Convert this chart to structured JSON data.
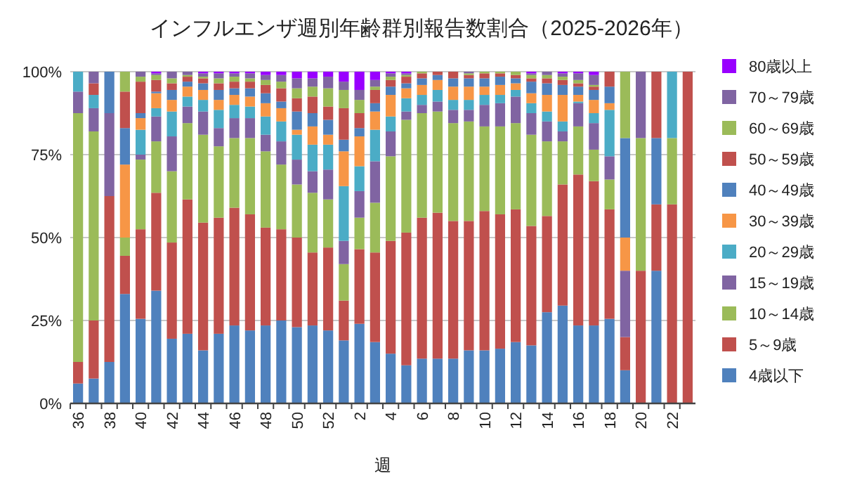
{
  "chart_data": {
    "type": "bar",
    "stacked": true,
    "title": "インフルエンザ週別年齢群別報告数割合（2025-2026年）",
    "xlabel": "週",
    "categories": [
      "36",
      null,
      "38",
      null,
      "40",
      null,
      "42",
      null,
      "44",
      null,
      "46",
      null,
      "48",
      null,
      "50",
      null,
      "52",
      null,
      "2",
      null,
      "4",
      null,
      "6",
      null,
      "8",
      null,
      "10",
      null,
      "12",
      null,
      "14",
      null,
      "16",
      null,
      "18",
      null,
      "20",
      null,
      "22",
      null
    ],
    "series": [
      {
        "name": "4歳以下",
        "color": "#4f81bd",
        "values": [
          6,
          7.5,
          12.5,
          33,
          25.5,
          34,
          19.5,
          21,
          16,
          21,
          23.5,
          22,
          23.5,
          25,
          23,
          23.5,
          22,
          19,
          24,
          18.5,
          15,
          11.5,
          13.5,
          13.5,
          13.5,
          16,
          16,
          16.5,
          18.5,
          17.5,
          27.5,
          29.5,
          23.5,
          23.5,
          25.5,
          10,
          0,
          40,
          0,
          0
        ]
      },
      {
        "name": "5～9歳",
        "color": "#c0504d",
        "values": [
          6.5,
          17.5,
          50,
          11.5,
          27,
          29.5,
          29,
          40.5,
          38.5,
          35,
          35.5,
          35,
          29.5,
          27.5,
          27,
          22,
          25,
          12,
          22.5,
          27,
          34,
          40,
          42.5,
          44,
          41.5,
          39,
          42,
          40.5,
          40,
          36,
          29,
          36.5,
          45.5,
          43.5,
          33,
          10,
          40,
          20,
          60,
          100
        ]
      },
      {
        "name": "10～14歳",
        "color": "#9bbb59",
        "values": [
          75,
          57,
          0,
          5.5,
          21,
          15.5,
          21.5,
          23,
          26.5,
          21.5,
          21,
          23,
          23,
          19.5,
          16,
          18,
          14.5,
          11,
          9.5,
          15,
          25.5,
          34,
          31.5,
          30.5,
          29.5,
          30,
          25.5,
          26.5,
          26,
          27.5,
          22.5,
          13,
          14.5,
          9.5,
          9,
          0,
          40,
          0,
          20,
          0
        ]
      },
      {
        "name": "15～19歳",
        "color": "#8064a2",
        "values": [
          6.5,
          7,
          25,
          0,
          1.5,
          7.5,
          10.5,
          5,
          7,
          5.5,
          6,
          6,
          5,
          7,
          7.5,
          6.5,
          9,
          7,
          8,
          12.5,
          7.5,
          2.5,
          2.5,
          3,
          4,
          3.5,
          6.5,
          7,
          8,
          6.5,
          6,
          3,
          7,
          8,
          7,
          20,
          20,
          0,
          0,
          0
        ]
      },
      {
        "name": "20～29歳",
        "color": "#4bacc6",
        "values": [
          6,
          4,
          0,
          0,
          7.5,
          2.5,
          7.5,
          3,
          3.5,
          5.5,
          4,
          3.5,
          5.5,
          6,
          7.5,
          8,
          7.5,
          16.5,
          7.5,
          9.5,
          4.5,
          4,
          3,
          3.5,
          3,
          3,
          3,
          2.5,
          2,
          3,
          3,
          3,
          0.5,
          3,
          14,
          0,
          0,
          0,
          20,
          0
        ]
      },
      {
        "name": "30～39歳",
        "color": "#f79646",
        "values": [
          0,
          0,
          0,
          22,
          3.5,
          4.5,
          3.5,
          3,
          3,
          3,
          3,
          3,
          4,
          4,
          1.5,
          5.5,
          3,
          10.5,
          9,
          5.5,
          6.5,
          3,
          3,
          3,
          4,
          4,
          2.5,
          3,
          2,
          3,
          5,
          8,
          2,
          4,
          2,
          10,
          0,
          0,
          0,
          0
        ]
      },
      {
        "name": "40～49歳",
        "color": "#4f81bd",
        "values": [
          0,
          0,
          12.5,
          11,
          1.5,
          0.5,
          3,
          1.5,
          2,
          3,
          2,
          2.5,
          3,
          2,
          5.5,
          4,
          4.5,
          3.5,
          2.5,
          2.5,
          2.5,
          1.5,
          2,
          1.5,
          2.5,
          2.5,
          2.5,
          2.5,
          1.5,
          3.5,
          3.5,
          3,
          2.5,
          3,
          5,
          30,
          0,
          20,
          0,
          0
        ]
      },
      {
        "name": "50～59歳",
        "color": "#c0504d",
        "values": [
          0,
          3.5,
          0,
          11,
          9.5,
          3.5,
          2,
          1.5,
          1.5,
          2,
          2,
          2,
          2.5,
          4,
          4,
          5,
          4,
          9.5,
          4.5,
          4,
          2,
          2,
          1.5,
          1,
          2,
          1,
          1.5,
          1,
          1,
          1,
          1.5,
          1.5,
          1,
          1,
          4.5,
          0,
          0,
          20,
          0,
          0
        ]
      },
      {
        "name": "60～69歳",
        "color": "#9bbb59",
        "values": [
          0,
          0,
          0,
          6,
          1.5,
          1.5,
          1.5,
          0.5,
          0.5,
          1.5,
          1.5,
          1,
          1.5,
          2,
          3,
          3,
          5.5,
          5.5,
          4,
          1,
          1,
          0.5,
          0.5,
          0,
          0,
          0.5,
          0.5,
          0.5,
          1,
          1,
          1,
          1,
          1,
          0.5,
          0,
          20,
          0,
          0,
          0,
          0
        ]
      },
      {
        "name": "70～79歳",
        "color": "#8064a2",
        "values": [
          0,
          3.5,
          0,
          0,
          1.5,
          0.5,
          2,
          1,
          1,
          1.5,
          1,
          1.5,
          1.5,
          2,
          3,
          2.5,
          3.5,
          2.5,
          3,
          2,
          1,
          0.5,
          0,
          0,
          0,
          0.5,
          0,
          0,
          0,
          0.5,
          1,
          1,
          2,
          3,
          0,
          0,
          0,
          0,
          0,
          0
        ]
      },
      {
        "name": "80歳以上",
        "color": "#9900ff",
        "values": [
          0,
          0,
          0,
          0,
          0,
          0.5,
          0,
          0,
          0.5,
          0.5,
          0.5,
          0.5,
          1,
          1,
          2,
          2,
          1.5,
          3,
          5.5,
          2.5,
          0.5,
          0.5,
          0,
          0,
          0,
          0,
          0,
          0,
          0,
          0.5,
          0,
          0.5,
          0.5,
          1,
          0,
          0,
          0,
          0,
          0,
          0
        ]
      }
    ],
    "ylim": [
      0,
      100
    ],
    "yticks": [
      {
        "value": 0,
        "label": "0%"
      },
      {
        "value": 25,
        "label": "25%"
      },
      {
        "value": 50,
        "label": "50%"
      },
      {
        "value": 75,
        "label": "75%"
      },
      {
        "value": 100,
        "label": "100%"
      }
    ],
    "grid": "y",
    "legend": "right"
  }
}
